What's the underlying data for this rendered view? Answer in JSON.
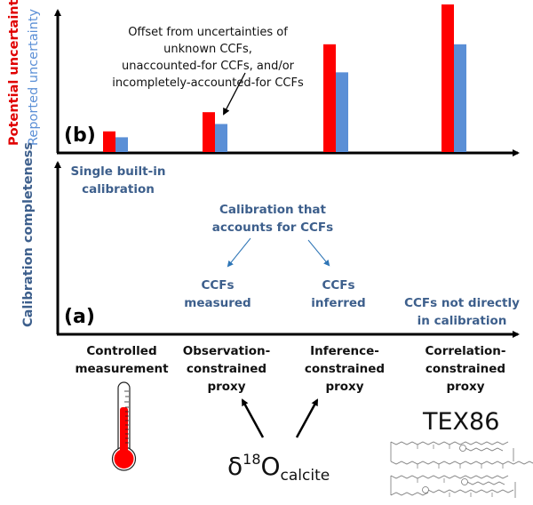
{
  "panel_b": {
    "label": "(b)",
    "ylabel_red": "Potential uncertainty",
    "ylabel_blue": "Reported uncertainty",
    "annotation": [
      "Offset from uncertainties of unknown CCFs,",
      "unaccounted-for CCFs, and/or",
      "incompletely-accounted-for CCFs"
    ]
  },
  "panel_a": {
    "label": "(a)",
    "ylabel": "Calibration completeness",
    "single_builtin": [
      "Single built-in",
      "calibration"
    ],
    "accounts_for": [
      "Calibration that",
      "accounts for CCFs"
    ],
    "ccfs_measured": [
      "CCFs",
      "measured"
    ],
    "ccfs_inferred": [
      "CCFs",
      "inferred"
    ],
    "ccfs_not_direct": [
      "CCFs not directly",
      "in calibration"
    ]
  },
  "categories": [
    {
      "lines": [
        "Controlled",
        "measurement"
      ]
    },
    {
      "lines": [
        "Observation-",
        "constrained",
        "proxy"
      ]
    },
    {
      "lines": [
        "Inference-",
        "constrained",
        "proxy"
      ]
    },
    {
      "lines": [
        "Correlation-",
        "constrained",
        "proxy"
      ]
    }
  ],
  "examples": {
    "delta_symbol": "δ",
    "delta_sup": "18",
    "delta_main": "O",
    "delta_sub": "calcite",
    "tex86": "TEX86"
  },
  "colors": {
    "potential": "#ff0000",
    "reported": "#5b8fd6",
    "label_blue": "#3d5f8c",
    "annotation_arrow": "#2e75b6"
  },
  "chart_data": {
    "type": "bar",
    "title": "",
    "xlabel": "",
    "ylabel": "Potential uncertainty / Reported uncertainty",
    "categories": [
      "Controlled measurement",
      "Observation-constrained proxy",
      "Inference-constrained proxy",
      "Correlation-constrained proxy"
    ],
    "series": [
      {
        "name": "Potential uncertainty",
        "color": "#ff0000",
        "values": [
          14,
          27,
          73,
          100
        ]
      },
      {
        "name": "Reported uncertainty",
        "color": "#5b8fd6",
        "values": [
          10,
          19,
          54,
          73
        ]
      }
    ],
    "ylim": [
      0,
      100
    ],
    "units": "relative (unlabeled axis)",
    "grid": false,
    "legend": "none (y-axis labels colored by series)"
  }
}
